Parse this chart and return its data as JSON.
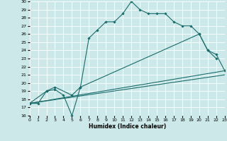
{
  "xlabel": "Humidex (Indice chaleur)",
  "bg_color": "#cce8e8",
  "grid_color": "#ffffff",
  "line_color": "#1a6b6b",
  "xlim": [
    0,
    23
  ],
  "ylim": [
    16,
    30
  ],
  "line1_x": [
    0,
    1,
    2,
    3,
    4,
    5,
    6,
    7,
    8,
    9,
    10,
    11,
    12,
    13,
    14,
    15,
    16,
    17,
    18,
    19,
    20,
    21,
    22
  ],
  "line1_y": [
    17.5,
    17.5,
    19.0,
    19.2,
    18.5,
    16.0,
    19.5,
    25.5,
    26.5,
    27.5,
    27.5,
    28.5,
    30.0,
    29.0,
    28.5,
    28.5,
    28.5,
    27.5,
    27.0,
    27.0,
    26.0,
    24.0,
    23.0
  ],
  "line2_x": [
    0,
    2,
    3,
    5,
    6,
    20,
    21,
    22,
    23
  ],
  "line2_y": [
    17.5,
    19.0,
    19.5,
    18.5,
    19.5,
    26.0,
    24.0,
    23.5,
    21.5
  ],
  "line3_x": [
    0,
    23
  ],
  "line3_y": [
    17.5,
    21.5
  ],
  "line4_x": [
    0,
    23
  ],
  "line4_y": [
    17.5,
    21.0
  ]
}
